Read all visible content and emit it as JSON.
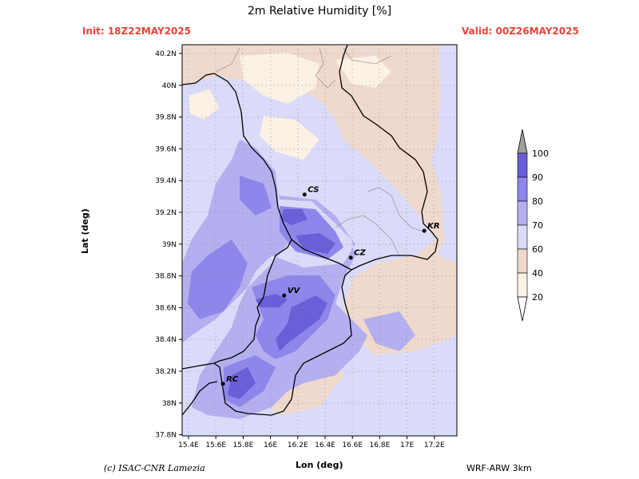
{
  "title": "2m Relative Humidity [%]",
  "init": "Init:  18Z22MAY2025",
  "valid": "Valid:  00Z26MAY2025",
  "xlabel": "Lon (deg)",
  "ylabel": "Lat (deg)",
  "credit": "(c) ISAC-CNR Lamezia",
  "model": "WRF-ARW 3km",
  "lon_ticks": [
    "15.4E",
    "15.6E",
    "15.8E",
    "16E",
    "16.2E",
    "16.4E",
    "16.6E",
    "16.8E",
    "17E",
    "17.2E"
  ],
  "lat_ticks": [
    "40.2N",
    "40N",
    "39.8N",
    "39.6N",
    "39.4N",
    "39.2N",
    "39N",
    "38.8N",
    "38.6N",
    "38.4N",
    "38.2N",
    "38N",
    "37.8N"
  ],
  "cities": [
    {
      "code": "CS",
      "lon": 16.25,
      "lat": 39.31
    },
    {
      "code": "KR",
      "lon": 17.13,
      "lat": 39.08
    },
    {
      "code": "CZ",
      "lon": 16.59,
      "lat": 38.91
    },
    {
      "code": "VV",
      "lon": 16.1,
      "lat": 38.67
    },
    {
      "code": "RC",
      "lon": 15.65,
      "lat": 38.11
    }
  ],
  "colorbar": {
    "labels": [
      "100",
      "90",
      "80",
      "70",
      "60",
      "40",
      "20"
    ],
    "colors": [
      "#a0a0a0",
      "#6a5fd8",
      "#8e86ea",
      "#b4afef",
      "#dadbf8",
      "#efd9cc",
      "#fbf1e4"
    ]
  }
}
